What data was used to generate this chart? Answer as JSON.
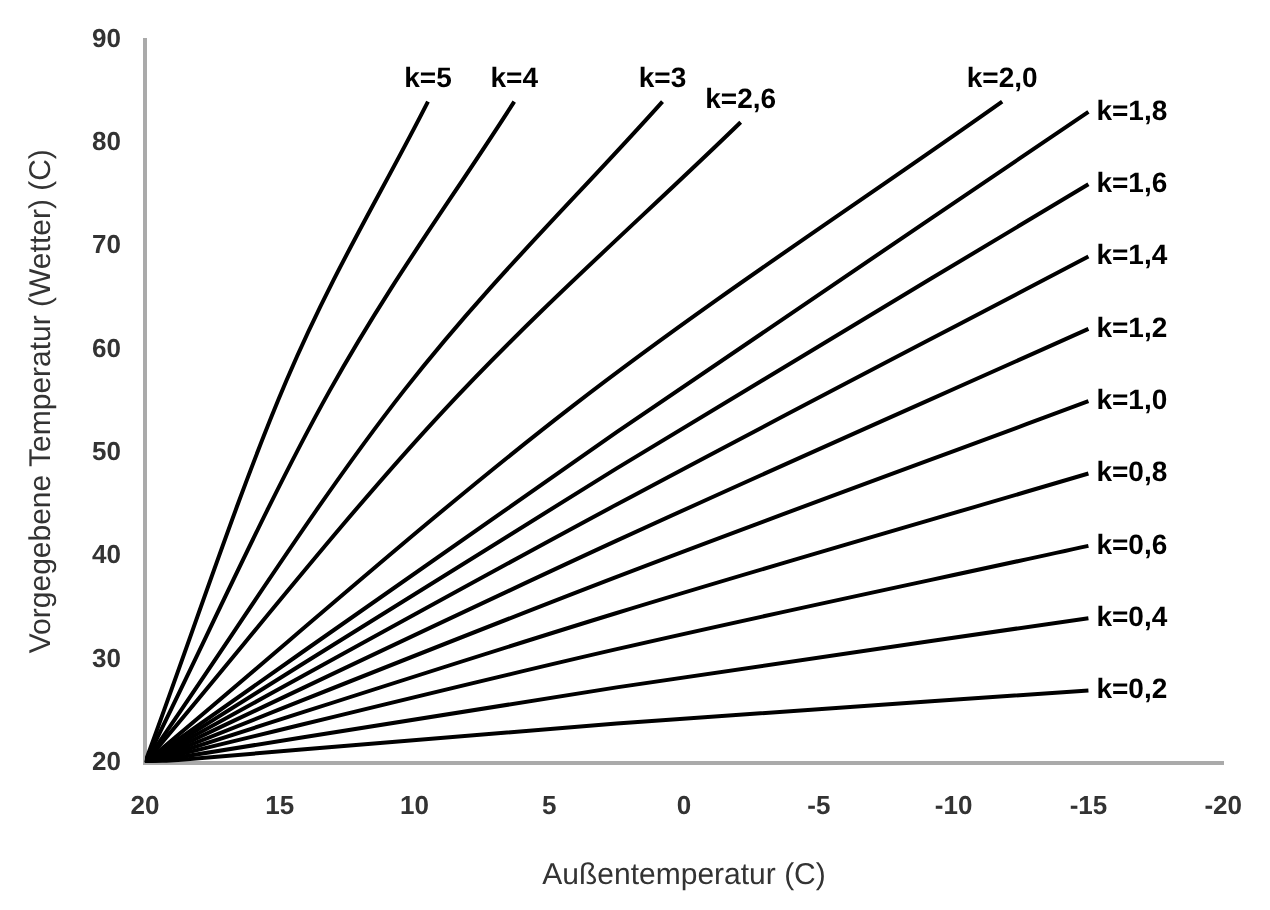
{
  "chart_data": {
    "type": "line",
    "xlabel": "Außentemperatur (C)",
    "ylabel": "Vorgegebene Temperatur (Wetter) (C)",
    "xlim": [
      20,
      -20
    ],
    "xticks": [
      20,
      15,
      10,
      5,
      0,
      -5,
      -10,
      -15,
      -20
    ],
    "ylim": [
      20,
      90
    ],
    "yticks": [
      20,
      30,
      40,
      50,
      60,
      70,
      80,
      90
    ],
    "grid": false,
    "legend": false,
    "marker": "none",
    "line_style": "solid",
    "series": [
      {
        "name": "k=5",
        "color": "#000000",
        "x": [
          20,
          14.75,
          9.5
        ],
        "values": [
          20,
          57,
          84
        ]
      },
      {
        "name": "k=4",
        "color": "#000000",
        "x": [
          20,
          13.15,
          6.3
        ],
        "values": [
          20,
          56,
          84
        ]
      },
      {
        "name": "k=3",
        "color": "#000000",
        "x": [
          20,
          10.4,
          0.8
        ],
        "values": [
          20,
          56,
          84
        ]
      },
      {
        "name": "k=2,6",
        "color": "#000000",
        "x": [
          20,
          8.95,
          -2.1
        ],
        "values": [
          20,
          54,
          82
        ]
      },
      {
        "name": "k=2,0",
        "color": "#000000",
        "x": [
          20,
          4.1,
          -11.8
        ],
        "values": [
          20,
          54.6,
          84
        ]
      },
      {
        "name": "k=1,8",
        "color": "#000000",
        "x": [
          20,
          2.5,
          -15
        ],
        "values": [
          20,
          52,
          83
        ]
      },
      {
        "name": "k=1,6",
        "color": "#000000",
        "x": [
          20,
          2.5,
          -15
        ],
        "values": [
          20,
          48.5,
          76
        ]
      },
      {
        "name": "k=1,4",
        "color": "#000000",
        "x": [
          20,
          2.5,
          -15
        ],
        "values": [
          20,
          45,
          69
        ]
      },
      {
        "name": "k=1,2",
        "color": "#000000",
        "x": [
          20,
          2.5,
          -15
        ],
        "values": [
          20,
          41.5,
          62
        ]
      },
      {
        "name": "k=1,0",
        "color": "#000000",
        "x": [
          20,
          2.5,
          -15
        ],
        "values": [
          20,
          38,
          55
        ]
      },
      {
        "name": "k=0,8",
        "color": "#000000",
        "x": [
          20,
          2.5,
          -15
        ],
        "values": [
          20,
          34.5,
          48
        ]
      },
      {
        "name": "k=0,6",
        "color": "#000000",
        "x": [
          20,
          2.5,
          -15
        ],
        "values": [
          20,
          31,
          41
        ]
      },
      {
        "name": "k=0,4",
        "color": "#000000",
        "x": [
          20,
          2.5,
          -15
        ],
        "values": [
          20,
          27.3,
          34
        ]
      },
      {
        "name": "k=0,2",
        "color": "#000000",
        "x": [
          20,
          2.5,
          -15
        ],
        "values": [
          20,
          23.8,
          27
        ]
      }
    ]
  }
}
